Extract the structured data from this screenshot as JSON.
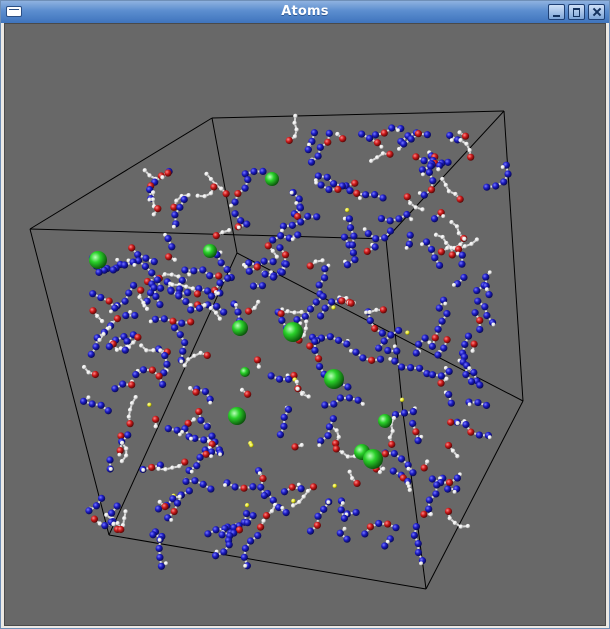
{
  "window": {
    "title": "Atoms",
    "controls": [
      "window-menu-icon",
      "minimize-icon",
      "maximize-icon",
      "close-icon"
    ]
  },
  "scene": {
    "background": "#686868",
    "cube_edge_color": "#000000",
    "atom_colors": {
      "blue": "#1c1cc4",
      "red": "#cc1a1a",
      "white": "#e6e6e6",
      "yellow": "#e8e82a",
      "green": "#2ad12a"
    },
    "bond_color": "#d8d8d8"
  }
}
